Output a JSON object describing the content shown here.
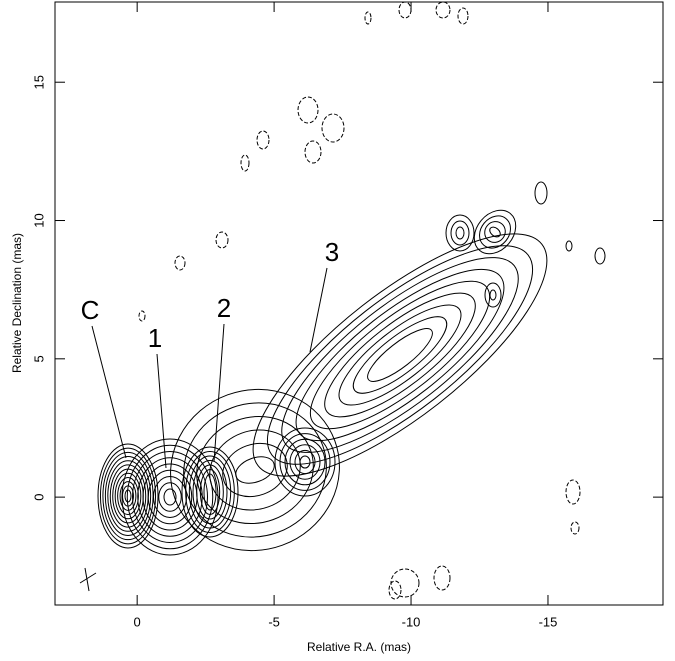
{
  "chart_data": {
    "type": "contour",
    "x_label": "Relative R.A. (mas)",
    "y_label": "Relative Declination (mas)",
    "xlim": [
      3.0,
      -19.2
    ],
    "ylim": [
      -3.9,
      17.9
    ],
    "xticks": [
      0,
      -5,
      -10,
      -15
    ],
    "yticks": [
      0,
      5,
      10,
      15
    ],
    "annotations": [
      "C",
      "1",
      "2",
      "3"
    ],
    "color": "#000000"
  }
}
